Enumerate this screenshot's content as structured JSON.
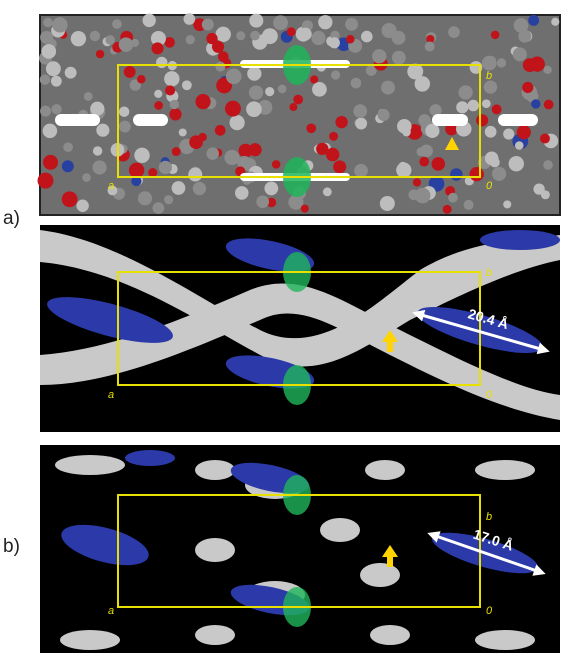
{
  "figure_labels": [
    "a)",
    "b)"
  ],
  "panels": [
    {
      "cell_labels": {
        "a": "a",
        "b": "b",
        "origin": "0"
      }
    },
    {
      "cell_labels": {
        "a": "a",
        "b": "b",
        "origin": "0"
      },
      "distance": "20.4 Å"
    },
    {
      "cell_labels": {
        "a": "a",
        "b": "b",
        "origin": "0"
      },
      "distance": "17.0 Å"
    }
  ]
}
